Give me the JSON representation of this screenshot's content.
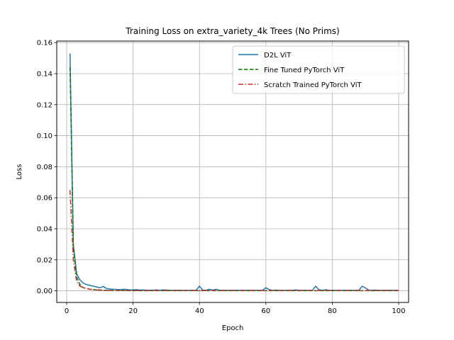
{
  "chart_data": {
    "type": "line",
    "title": "Training Loss on extra_variety_4k Trees (No Prims)",
    "xlabel": "Epoch",
    "ylabel": "Loss",
    "xlim": [
      -3,
      103
    ],
    "ylim": [
      -0.0075,
      0.161
    ],
    "xticks": [
      0,
      20,
      40,
      60,
      80,
      100
    ],
    "yticks": [
      0.0,
      0.02,
      0.04,
      0.06,
      0.08,
      0.1,
      0.12,
      0.14,
      0.16
    ],
    "ytick_labels": [
      "0.00",
      "0.02",
      "0.04",
      "0.06",
      "0.08",
      "0.10",
      "0.12",
      "0.14",
      "0.16"
    ],
    "grid": true,
    "legend_position": "top-right",
    "series": [
      {
        "name": "D2L ViT",
        "color": "#1f77b4",
        "dash": "solid",
        "x": [
          1,
          2,
          3,
          4,
          5,
          6,
          7,
          8,
          9,
          10,
          11,
          12,
          13,
          14,
          15,
          16,
          17,
          18,
          19,
          20,
          21,
          22,
          23,
          24,
          25,
          26,
          27,
          28,
          29,
          30,
          31,
          32,
          33,
          34,
          35,
          36,
          37,
          38,
          39,
          40,
          41,
          42,
          43,
          44,
          45,
          46,
          47,
          48,
          49,
          50,
          51,
          52,
          53,
          54,
          55,
          56,
          57,
          58,
          59,
          60,
          61,
          62,
          63,
          64,
          65,
          66,
          67,
          68,
          69,
          70,
          71,
          72,
          73,
          74,
          75,
          76,
          77,
          78,
          79,
          80,
          81,
          82,
          83,
          84,
          85,
          86,
          87,
          88,
          89,
          90,
          91,
          92,
          93,
          94,
          95,
          96,
          97,
          98,
          99,
          100
        ],
        "y": [
          0.153,
          0.03,
          0.011,
          0.007,
          0.005,
          0.004,
          0.0035,
          0.003,
          0.0025,
          0.002,
          0.0028,
          0.0015,
          0.0012,
          0.001,
          0.0009,
          0.0008,
          0.001,
          0.0009,
          0.0006,
          0.0006,
          0.0008,
          0.0005,
          0.0006,
          0.0004,
          0.0004,
          0.0004,
          0.0006,
          0.0004,
          0.0006,
          0.0005,
          0.0003,
          0.0003,
          0.0004,
          0.0003,
          0.0003,
          0.0003,
          0.0003,
          0.0003,
          0.0004,
          0.003,
          0.0005,
          0.0004,
          0.001,
          0.0005,
          0.001,
          0.0004,
          0.0003,
          0.0003,
          0.0003,
          0.0003,
          0.0003,
          0.0003,
          0.0003,
          0.0003,
          0.0003,
          0.0003,
          0.0003,
          0.0003,
          0.0003,
          0.002,
          0.0008,
          0.0003,
          0.0005,
          0.0003,
          0.0003,
          0.0003,
          0.0003,
          0.0003,
          0.0006,
          0.0003,
          0.0003,
          0.0003,
          0.0003,
          0.0003,
          0.003,
          0.0008,
          0.0003,
          0.0008,
          0.0003,
          0.0003,
          0.0003,
          0.0003,
          0.0003,
          0.0003,
          0.0003,
          0.0003,
          0.0003,
          0.0003,
          0.003,
          0.0018,
          0.0005,
          0.0003,
          0.0005,
          0.0003,
          0.0003,
          0.0003,
          0.0003,
          0.0003,
          0.0003,
          0.0003
        ]
      },
      {
        "name": "Fine Tuned PyTorch ViT",
        "color": "#008000",
        "dash": "dashed",
        "x": [
          1,
          2,
          3,
          4,
          5,
          6,
          7,
          8,
          9,
          10,
          11,
          12,
          13,
          14,
          15,
          16,
          17,
          18,
          19,
          20,
          21,
          22,
          23,
          24,
          25,
          26,
          27,
          28,
          29,
          30,
          31,
          32,
          33,
          34,
          35,
          36,
          37,
          38,
          39,
          40,
          41,
          42,
          43,
          44,
          45,
          46,
          47,
          48,
          49,
          50,
          51,
          52,
          53,
          54,
          55,
          56,
          57,
          58,
          59,
          60,
          61,
          62,
          63,
          64,
          65,
          66,
          67,
          68,
          69,
          70,
          71,
          72,
          73,
          74,
          75,
          76,
          77,
          78,
          79,
          80,
          81,
          82,
          83,
          84,
          85,
          86,
          87,
          88,
          89,
          90,
          91,
          92,
          93,
          94,
          95,
          96,
          97,
          98,
          99,
          100
        ],
        "y": [
          0.144,
          0.028,
          0.009,
          0.004,
          0.002,
          0.0015,
          0.001,
          0.0008,
          0.0006,
          0.0005,
          0.0004,
          0.0003,
          0.0003,
          0.0002,
          0.0002,
          0.0002,
          0.0002,
          0.0001,
          0.0001,
          0.0001,
          0.0001,
          0.0001,
          0.0001,
          0.0001,
          0.0001,
          0.0001,
          0.0001,
          0.0001,
          0.0001,
          0.0001,
          0.0001,
          0.0001,
          0.0001,
          0.0001,
          0.0001,
          0.0001,
          0.0001,
          0.0001,
          0.0001,
          0.0001,
          0.0001,
          0.0001,
          0.0001,
          0.0001,
          0.0001,
          0.0001,
          0.0001,
          0.0001,
          0.0001,
          0.0001,
          0.0001,
          0.0001,
          0.0001,
          0.0001,
          0.0001,
          0.0001,
          0.0001,
          0.0001,
          0.0001,
          0.0001,
          0.0001,
          0.0001,
          0.0001,
          0.0001,
          0.0001,
          0.0001,
          0.0001,
          0.0001,
          0.0001,
          0.0001,
          0.0001,
          0.0001,
          0.0001,
          0.0001,
          0.0001,
          0.0001,
          0.0001,
          0.0001,
          0.0001,
          0.0001,
          0.0001,
          0.0001,
          0.0001,
          0.0001,
          0.0001,
          0.0001,
          0.0001,
          0.0001,
          0.0001,
          0.0001,
          0.0001,
          0.0001,
          0.0001,
          0.0001,
          0.0001,
          0.0001,
          0.0001,
          0.0001,
          0.0001,
          0.0001
        ]
      },
      {
        "name": "Scratch Trained PyTorch ViT",
        "color": "#d62728",
        "dash": "dashdot",
        "x": [
          1,
          2,
          3,
          4,
          5,
          6,
          7,
          8,
          9,
          10,
          11,
          12,
          13,
          14,
          15,
          16,
          17,
          18,
          19,
          20,
          21,
          22,
          23,
          24,
          25,
          26,
          27,
          28,
          29,
          30,
          31,
          32,
          33,
          34,
          35,
          36,
          37,
          38,
          39,
          40,
          41,
          42,
          43,
          44,
          45,
          46,
          47,
          48,
          49,
          50,
          51,
          52,
          53,
          54,
          55,
          56,
          57,
          58,
          59,
          60,
          61,
          62,
          63,
          64,
          65,
          66,
          67,
          68,
          69,
          70,
          71,
          72,
          73,
          74,
          75,
          76,
          77,
          78,
          79,
          80,
          81,
          82,
          83,
          84,
          85,
          86,
          87,
          88,
          89,
          90,
          91,
          92,
          93,
          94,
          95,
          96,
          97,
          98,
          99,
          100
        ],
        "y": [
          0.065,
          0.02,
          0.006,
          0.003,
          0.002,
          0.0015,
          0.001,
          0.0008,
          0.0006,
          0.0005,
          0.0004,
          0.0003,
          0.0003,
          0.0003,
          0.0002,
          0.0002,
          0.0002,
          0.0002,
          0.0002,
          0.0002,
          0.0002,
          0.0002,
          0.0002,
          0.0002,
          0.0002,
          0.0002,
          0.0002,
          0.0002,
          0.0002,
          0.0002,
          0.0002,
          0.0002,
          0.0002,
          0.0002,
          0.0002,
          0.0002,
          0.0002,
          0.0002,
          0.0002,
          0.0002,
          0.0002,
          0.0002,
          0.0002,
          0.0002,
          0.0002,
          0.0002,
          0.0002,
          0.0002,
          0.0002,
          0.0002,
          0.0002,
          0.0002,
          0.0002,
          0.0002,
          0.0002,
          0.0002,
          0.0002,
          0.0002,
          0.0002,
          0.0002,
          0.0002,
          0.0002,
          0.0002,
          0.0002,
          0.0002,
          0.0002,
          0.0002,
          0.0002,
          0.0002,
          0.0002,
          0.0002,
          0.0002,
          0.0002,
          0.0002,
          0.0002,
          0.0002,
          0.0002,
          0.0002,
          0.0002,
          0.0002,
          0.0002,
          0.0002,
          0.0002,
          0.0002,
          0.0002,
          0.0002,
          0.0002,
          0.0002,
          0.0002,
          0.0002,
          0.0002,
          0.0002,
          0.0002,
          0.0002,
          0.0002,
          0.0002,
          0.0002,
          0.0002,
          0.0002,
          0.0002
        ]
      }
    ]
  }
}
